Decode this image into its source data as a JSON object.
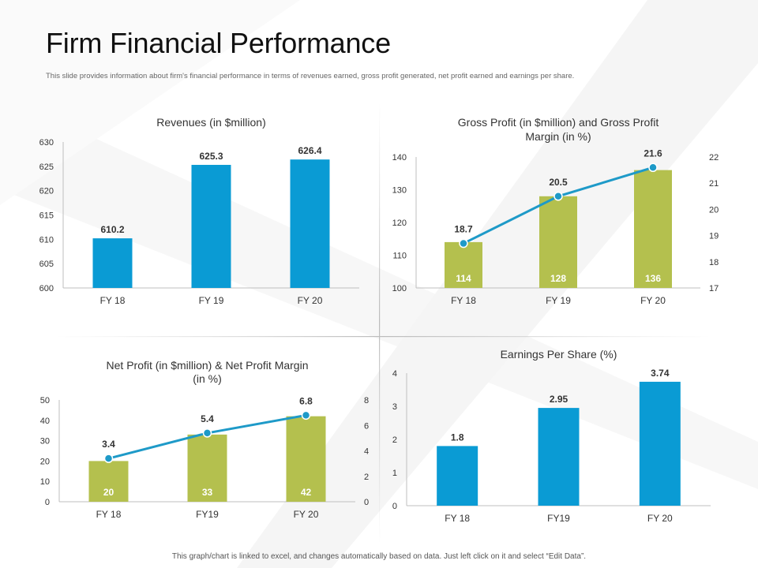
{
  "page": {
    "title": "Firm Financial Performance",
    "subtitle": "This slide provides information about firm's financial performance in terms of revenues earned, gross profit generated, net profit earned and earnings per share.",
    "footer": "This graph/chart is linked to excel, and changes automatically based on data. Just left click on it and select “Edit Data”."
  },
  "colors": {
    "blue": "#0a9bd4",
    "olive": "#b4c04e",
    "line": "#1e9ac8",
    "axis": "#bfbfbf"
  },
  "chart_data": [
    {
      "id": "revenues",
      "type": "bar",
      "title": [
        "Revenues (in $million)"
      ],
      "categories": [
        "FY 18",
        "FY 19",
        "FY 20"
      ],
      "values": [
        610.2,
        625.3,
        626.4
      ],
      "labels": [
        "610.2",
        "625.3",
        "626.4"
      ],
      "ylim": [
        600,
        630
      ],
      "yticks": [
        600,
        605,
        610,
        615,
        620,
        625,
        630
      ]
    },
    {
      "id": "gross-profit",
      "type": "bar+line",
      "title": [
        "Gross Profit (in $million) and Gross Profit",
        "Margin (in %)"
      ],
      "categories": [
        "FY 18",
        "FY 19",
        "FY 20"
      ],
      "series": [
        {
          "name": "Gross Profit",
          "type": "bar",
          "axis": "left",
          "values": [
            114,
            128,
            136
          ],
          "labels": [
            "114",
            "128",
            "136"
          ]
        },
        {
          "name": "Gross Profit Margin",
          "type": "line",
          "axis": "right",
          "values": [
            18.7,
            20.5,
            21.6
          ],
          "labels": [
            "18.7",
            "20.5",
            "21.6"
          ]
        }
      ],
      "ylim": [
        100,
        140
      ],
      "yticks": [
        100,
        110,
        120,
        130,
        140
      ],
      "y2lim": [
        17,
        22
      ],
      "y2ticks": [
        17,
        18,
        19,
        20,
        21,
        22
      ]
    },
    {
      "id": "net-profit",
      "type": "bar+line",
      "title": [
        "Net Profit (in $million) & Net Profit Margin",
        "(in %)"
      ],
      "categories": [
        "FY 18",
        "FY19",
        "FY 20"
      ],
      "series": [
        {
          "name": "Net Profit",
          "type": "bar",
          "axis": "left",
          "values": [
            20,
            33,
            42
          ],
          "labels": [
            "20",
            "33",
            "42"
          ]
        },
        {
          "name": "Net Profit Margin",
          "type": "line",
          "axis": "right",
          "values": [
            3.4,
            5.4,
            6.8
          ],
          "labels": [
            "3.4",
            "5.4",
            "6.8"
          ]
        }
      ],
      "ylim": [
        0,
        50
      ],
      "yticks": [
        0,
        10,
        20,
        30,
        40,
        50
      ],
      "y2lim": [
        0,
        8
      ],
      "y2ticks": [
        0,
        2,
        4,
        6,
        8
      ]
    },
    {
      "id": "eps",
      "type": "bar",
      "title": [
        "Earnings Per Share (%)"
      ],
      "categories": [
        "FY 18",
        "FY19",
        "FY 20"
      ],
      "values": [
        1.8,
        2.95,
        3.74
      ],
      "labels": [
        "1.8",
        "2.95",
        "3.74"
      ],
      "ylim": [
        0,
        4
      ],
      "yticks": [
        0,
        1,
        2,
        3,
        4
      ]
    }
  ]
}
